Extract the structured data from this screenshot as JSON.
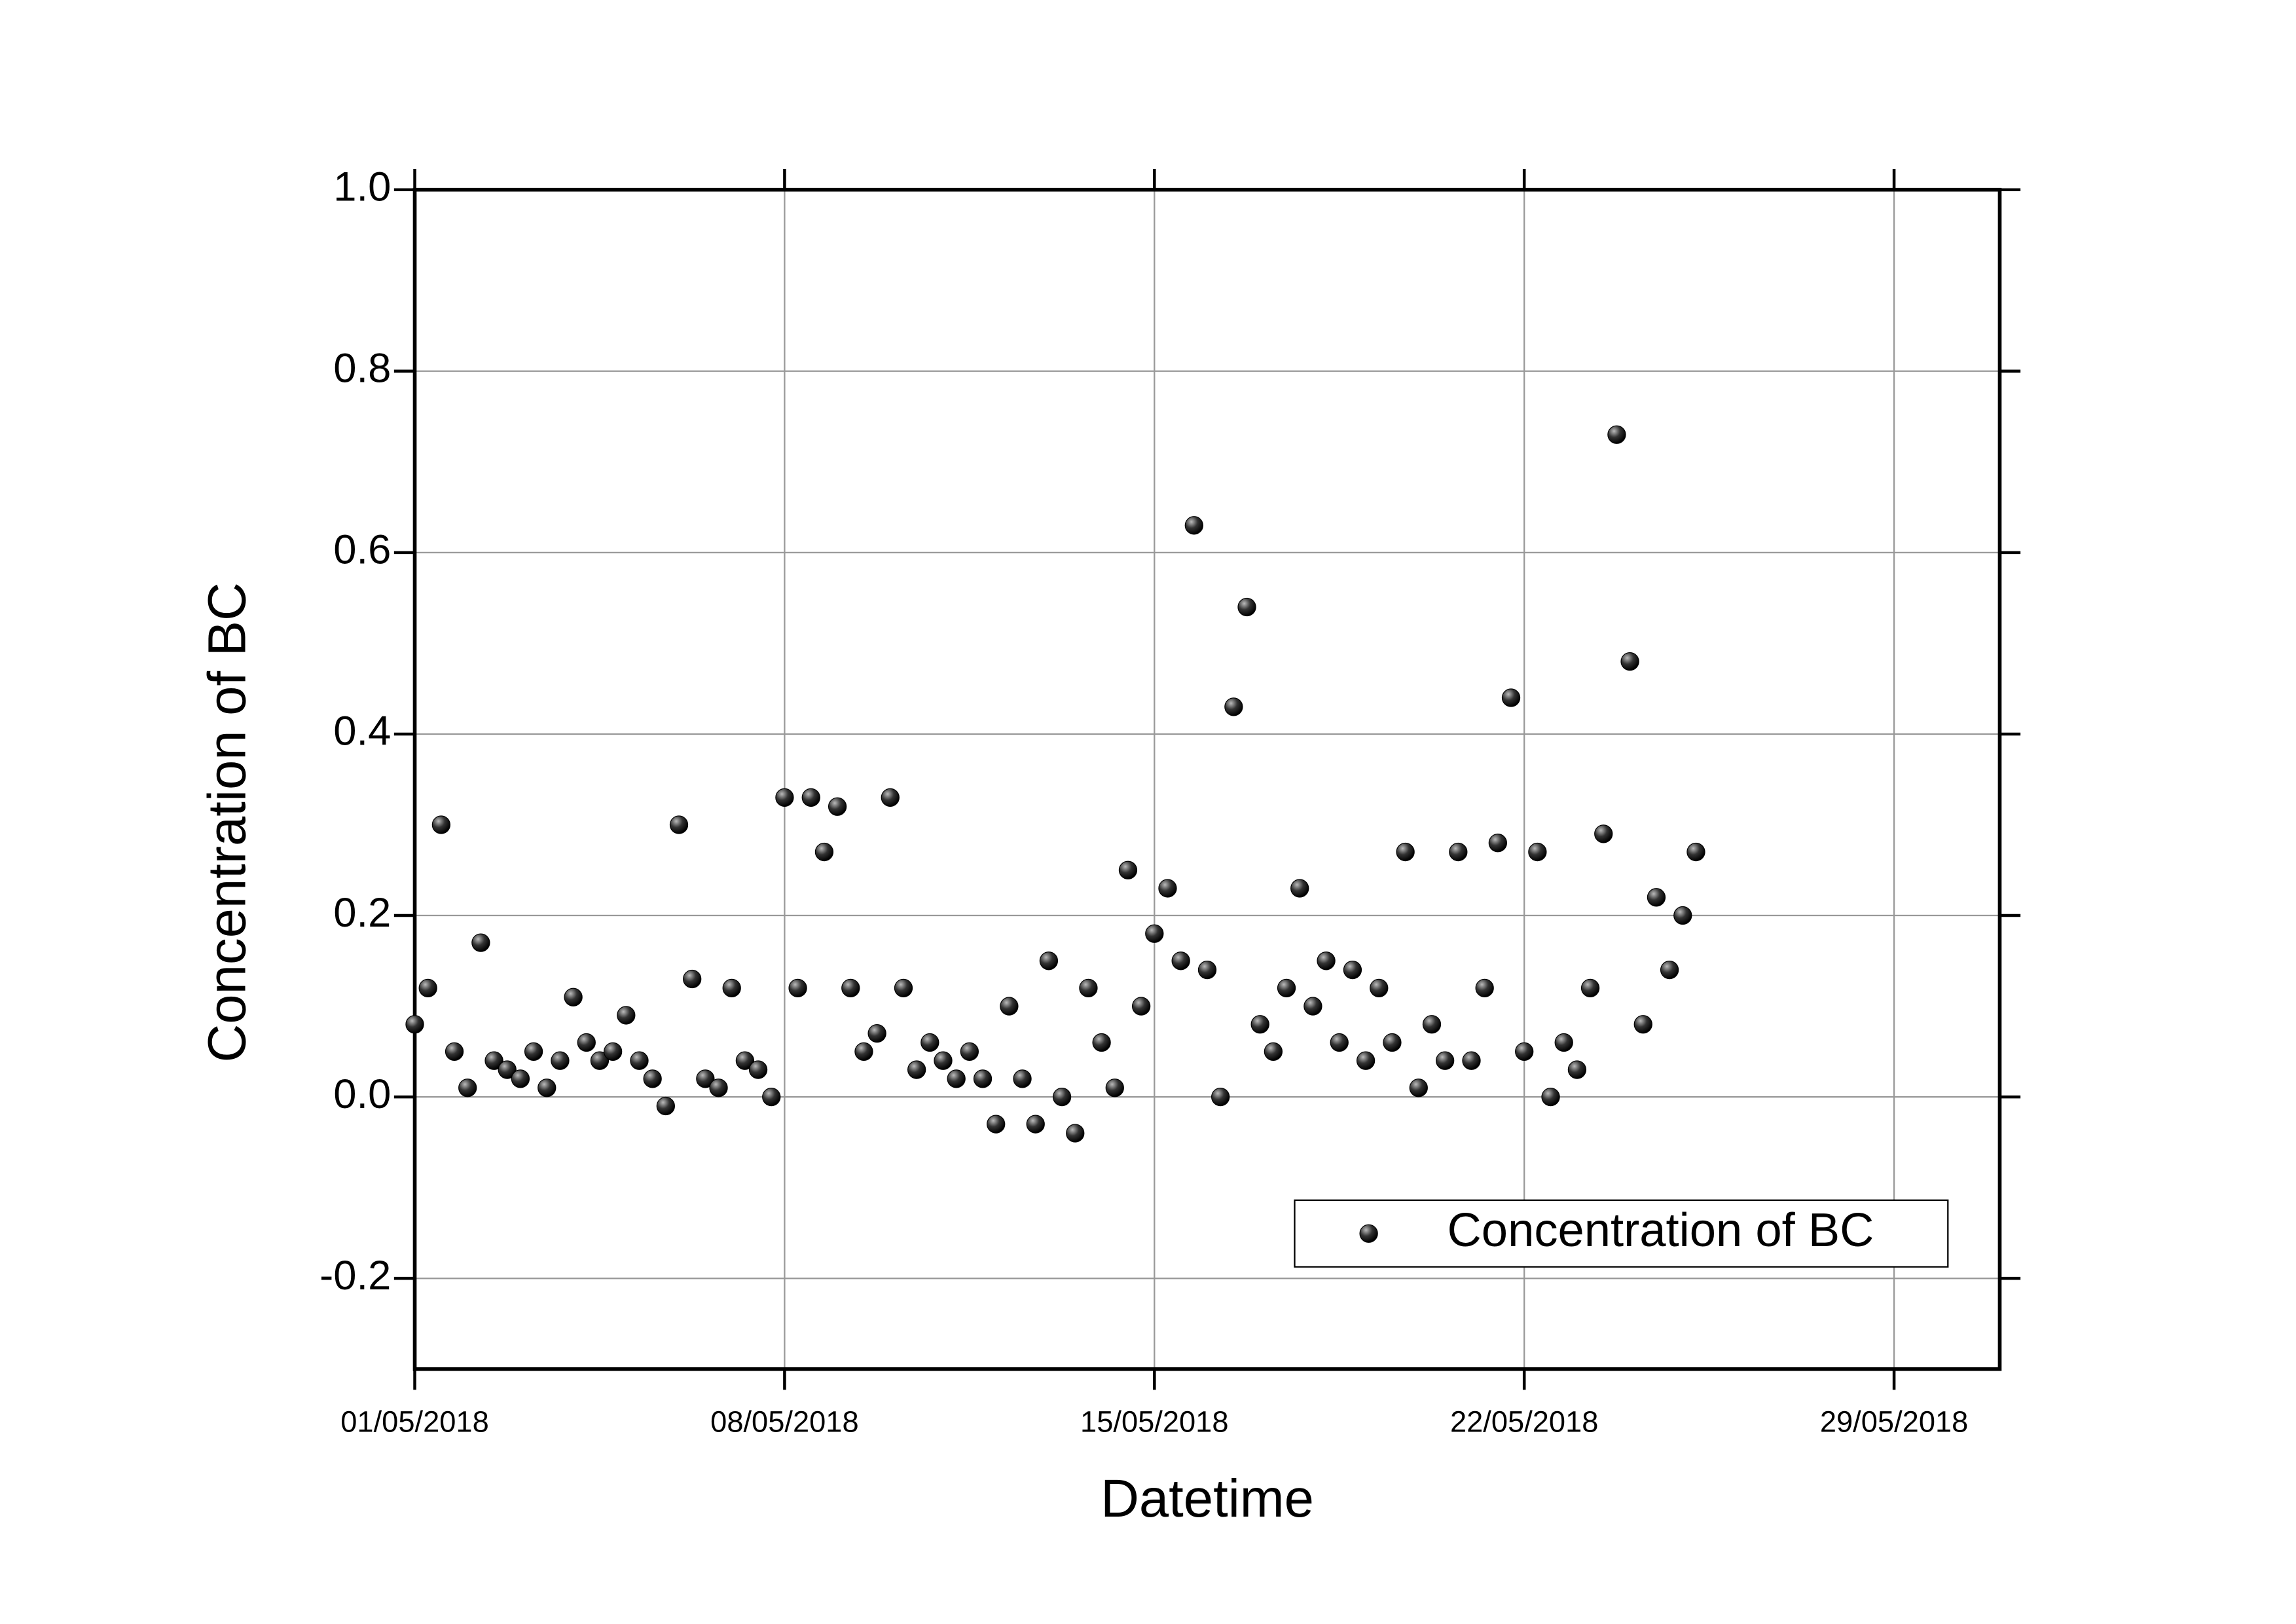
{
  "chart_data": {
    "type": "scatter",
    "xlabel": "Datetime",
    "ylabel": "Concentration of BC",
    "series": [
      {
        "name": "Concentration of BC",
        "color": "#000000",
        "x": [
          1,
          1.25,
          1.5,
          1.75,
          2,
          2.25,
          2.5,
          2.75,
          3,
          3.25,
          3.5,
          3.75,
          4,
          4.25,
          4.5,
          4.75,
          5,
          5.25,
          5.5,
          5.75,
          6,
          6.25,
          6.5,
          6.75,
          7,
          7.25,
          7.5,
          7.75,
          8,
          8.25,
          8.5,
          8.75,
          9,
          9.25,
          9.5,
          9.75,
          10,
          10.25,
          10.5,
          10.75,
          11,
          11.25,
          11.5,
          11.75,
          12,
          12.25,
          12.5,
          12.75,
          13,
          13.25,
          13.5,
          13.75,
          14,
          14.25,
          14.5,
          14.75,
          15,
          15.25,
          15.5,
          15.75,
          16,
          16.25,
          16.5,
          16.75,
          17,
          17.25,
          17.5,
          17.75,
          18,
          18.25,
          18.5,
          18.75,
          19,
          19.25,
          19.5,
          19.75,
          20,
          20.25,
          20.5,
          20.75,
          21,
          21.25,
          21.5,
          21.75,
          22,
          22.25,
          22.5,
          22.75,
          23,
          23.25,
          23.5,
          23.75,
          24,
          24.25,
          24.5,
          24.75,
          25,
          25.25
        ],
        "values": [
          0.08,
          0.12,
          0.3,
          0.05,
          0.01,
          0.17,
          0.04,
          0.03,
          0.02,
          0.05,
          0.01,
          0.04,
          0.11,
          0.06,
          0.04,
          0.05,
          0.09,
          0.04,
          0.02,
          -0.01,
          0.3,
          0.13,
          0.02,
          0.01,
          0.12,
          0.04,
          0.03,
          0.0,
          0.33,
          0.12,
          0.33,
          0.27,
          0.32,
          0.12,
          0.05,
          0.07,
          0.33,
          0.12,
          0.03,
          0.06,
          0.04,
          0.02,
          0.05,
          0.02,
          -0.03,
          0.1,
          0.02,
          -0.03,
          0.15,
          0.0,
          -0.04,
          0.12,
          0.06,
          0.01,
          0.25,
          0.1,
          0.18,
          0.23,
          0.15,
          0.63,
          0.14,
          0.0,
          0.43,
          0.54,
          0.08,
          0.05,
          0.12,
          0.23,
          0.1,
          0.15,
          0.06,
          0.14,
          0.04,
          0.12,
          0.06,
          0.27,
          0.01,
          0.08,
          0.04,
          0.27,
          0.04,
          0.12,
          0.28,
          0.44,
          0.05,
          0.27,
          0.0,
          0.06,
          0.03,
          0.12,
          0.29,
          0.73,
          0.48,
          0.08,
          0.22,
          0.14,
          0.2,
          0.27
        ]
      }
    ],
    "xlim": [
      1,
      31
    ],
    "xticks": [
      {
        "value": 1,
        "label": "01/05/2018"
      },
      {
        "value": 8,
        "label": "08/05/2018"
      },
      {
        "value": 15,
        "label": "15/05/2018"
      },
      {
        "value": 22,
        "label": "22/05/2018"
      },
      {
        "value": 29,
        "label": "29/05/2018"
      }
    ],
    "ylim": [
      -0.3,
      1.0
    ],
    "yticks": [
      -0.2,
      {
        "value": 0,
        "label": "0.0"
      },
      0.2,
      0.4,
      0.6,
      0.8,
      {
        "value": 1,
        "label": "1.0"
      }
    ],
    "grid": true,
    "legend": "lower right"
  }
}
